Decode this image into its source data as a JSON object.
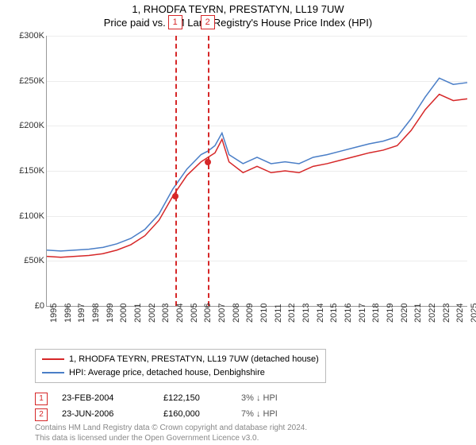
{
  "title_line1": "1, RHODFA TEYRN, PRESTATYN, LL19 7UW",
  "title_line2": "Price paid vs. HM Land Registry's House Price Index (HPI)",
  "chart": {
    "type": "line",
    "ylim": [
      0,
      300000
    ],
    "ytick_step": 50000,
    "yticks": [
      "£0",
      "£50K",
      "£100K",
      "£150K",
      "£200K",
      "£250K",
      "£300K"
    ],
    "xlim": [
      1995,
      2025
    ],
    "xticks": [
      1995,
      1996,
      1997,
      1998,
      1999,
      2000,
      2001,
      2002,
      2003,
      2004,
      2005,
      2006,
      2007,
      2008,
      2009,
      2010,
      2011,
      2012,
      2013,
      2014,
      2015,
      2016,
      2017,
      2018,
      2019,
      2020,
      2021,
      2022,
      2023,
      2024,
      2025
    ],
    "background_color": "#ffffff",
    "grid_color": "#ececec",
    "series": [
      {
        "name": "1, RHODFA TEYRN, PRESTATYN, LL19 7UW (detached house)",
        "color": "#d62728",
        "width": 1.5,
        "points": [
          [
            1995,
            55000
          ],
          [
            1996,
            54000
          ],
          [
            1997,
            55000
          ],
          [
            1998,
            56000
          ],
          [
            1999,
            58000
          ],
          [
            2000,
            62000
          ],
          [
            2001,
            68000
          ],
          [
            2002,
            78000
          ],
          [
            2003,
            95000
          ],
          [
            2004,
            122150
          ],
          [
            2005,
            145000
          ],
          [
            2006,
            160000
          ],
          [
            2006.5,
            165000
          ],
          [
            2007,
            170000
          ],
          [
            2007.5,
            185000
          ],
          [
            2008,
            160000
          ],
          [
            2009,
            148000
          ],
          [
            2010,
            155000
          ],
          [
            2011,
            148000
          ],
          [
            2012,
            150000
          ],
          [
            2013,
            148000
          ],
          [
            2014,
            155000
          ],
          [
            2015,
            158000
          ],
          [
            2016,
            162000
          ],
          [
            2017,
            166000
          ],
          [
            2018,
            170000
          ],
          [
            2019,
            173000
          ],
          [
            2020,
            178000
          ],
          [
            2021,
            195000
          ],
          [
            2022,
            218000
          ],
          [
            2023,
            235000
          ],
          [
            2024,
            228000
          ],
          [
            2025,
            230000
          ]
        ]
      },
      {
        "name": "HPI: Average price, detached house, Denbighshire",
        "color": "#4a7ec7",
        "width": 1.5,
        "points": [
          [
            1995,
            62000
          ],
          [
            1996,
            61000
          ],
          [
            1997,
            62000
          ],
          [
            1998,
            63000
          ],
          [
            1999,
            65000
          ],
          [
            2000,
            69000
          ],
          [
            2001,
            75000
          ],
          [
            2002,
            85000
          ],
          [
            2003,
            102000
          ],
          [
            2004,
            130000
          ],
          [
            2005,
            152000
          ],
          [
            2006,
            168000
          ],
          [
            2006.5,
            172000
          ],
          [
            2007,
            178000
          ],
          [
            2007.5,
            192000
          ],
          [
            2008,
            168000
          ],
          [
            2009,
            158000
          ],
          [
            2010,
            165000
          ],
          [
            2011,
            158000
          ],
          [
            2012,
            160000
          ],
          [
            2013,
            158000
          ],
          [
            2014,
            165000
          ],
          [
            2015,
            168000
          ],
          [
            2016,
            172000
          ],
          [
            2017,
            176000
          ],
          [
            2018,
            180000
          ],
          [
            2019,
            183000
          ],
          [
            2020,
            188000
          ],
          [
            2021,
            208000
          ],
          [
            2022,
            232000
          ],
          [
            2023,
            253000
          ],
          [
            2024,
            246000
          ],
          [
            2025,
            248000
          ]
        ]
      }
    ],
    "sales": [
      {
        "num": "1",
        "x": 2004.15,
        "date": "23-FEB-2004",
        "price_val": 122150,
        "price": "£122,150",
        "diff": "3% ↓ HPI"
      },
      {
        "num": "2",
        "x": 2006.47,
        "date": "23-JUN-2006",
        "price_val": 160000,
        "price": "£160,000",
        "diff": "7% ↓ HPI"
      }
    ]
  },
  "legend": {
    "item1": "1, RHODFA TEYRN, PRESTATYN, LL19 7UW (detached house)",
    "item2": "HPI: Average price, detached house, Denbighshire"
  },
  "footer_line1": "Contains HM Land Registry data © Crown copyright and database right 2024.",
  "footer_line2": "This data is licensed under the Open Government Licence v3.0."
}
